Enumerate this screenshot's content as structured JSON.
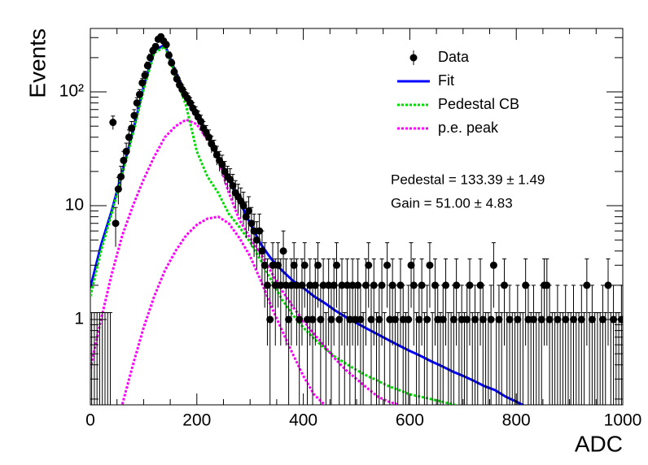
{
  "chart_data": {
    "type": "scatter",
    "xlabel": "ADC",
    "ylabel": "Events",
    "xlim": [
      0,
      1000
    ],
    "xticks": [
      0,
      200,
      400,
      600,
      800,
      1000
    ],
    "xminor_ticks": [
      50,
      100,
      150,
      250,
      300,
      350,
      450,
      500,
      550,
      650,
      700,
      750,
      850,
      900,
      950
    ],
    "ylim": [
      0.178,
      361
    ],
    "log_y": true,
    "yticks": [
      1,
      10,
      {
        "value": 100,
        "label": "10²"
      }
    ],
    "yminor_ticks": [
      0.2,
      0.3,
      0.4,
      0.5,
      0.6,
      0.7,
      0.8,
      0.9,
      2,
      3,
      4,
      5,
      6,
      7,
      8,
      9,
      20,
      30,
      40,
      50,
      60,
      70,
      80,
      90,
      200,
      300
    ],
    "legend": "upper right",
    "annotations": [
      "Pedestal = 133.39 ± 1.49",
      "Gain = 51.00 ± 4.83"
    ],
    "curve_x": [
      0,
      20,
      40,
      60,
      80,
      100,
      120,
      140,
      160,
      180,
      200,
      220,
      240,
      260,
      280,
      300,
      320,
      340,
      360,
      380,
      400,
      420,
      440,
      460,
      480,
      500,
      520,
      540,
      560,
      580,
      600,
      620,
      640,
      660,
      680,
      700,
      720,
      740,
      760,
      780,
      800,
      820,
      840,
      860,
      880,
      900,
      920,
      940,
      960,
      980,
      1000
    ],
    "series": [
      {
        "name": "Data",
        "color": "#000000",
        "style": "points",
        "x": [
          2.5,
          7.5,
          12.5,
          17.5,
          22.5,
          27.5,
          32.5,
          37.5,
          42.5,
          47.5,
          52.5,
          57.5,
          62.5,
          67.5,
          72.5,
          77.5,
          82.5,
          87.5,
          92.5,
          97.5,
          102.5,
          107.5,
          112.5,
          117.5,
          122.5,
          127.5,
          132.5,
          137.5,
          142.5,
          147.5,
          152.5,
          157.5,
          162.5,
          167.5,
          172.5,
          177.5,
          182.5,
          187.5,
          192.5,
          197.5,
          202.5,
          207.5,
          212.5,
          217.5,
          222.5,
          227.5,
          232.5,
          237.5,
          242.5,
          247.5,
          252.5,
          257.5,
          262.5,
          267.5,
          272.5,
          277.5,
          282.5,
          287.5,
          292.5,
          297.5,
          302.5,
          307.5,
          312.5,
          317.5,
          322.5,
          327.5,
          332.5,
          337.5,
          342.5,
          347.5,
          352.5,
          357.5,
          362.5,
          367.5,
          372.5,
          377.5,
          382.5,
          387.5,
          392.5,
          397.5,
          402.5,
          407.5,
          412.5,
          417.5,
          422.5,
          427.5,
          432.5,
          437.5,
          442.5,
          447.5,
          452.5,
          457.5,
          462.5,
          467.5,
          472.5,
          477.5,
          482.5,
          487.5,
          492.5,
          497.5,
          502.5,
          507.5,
          512.5,
          517.5,
          522.5,
          527.5,
          532.5,
          537.5,
          542.5,
          547.5,
          552.5,
          557.5,
          562.5,
          567.5,
          572.5,
          577.5,
          582.5,
          587.5,
          592.5,
          597.5,
          602.5,
          607.5,
          612.5,
          617.5,
          622.5,
          627.5,
          632.5,
          637.5,
          642.5,
          647.5,
          652.5,
          657.5,
          662.5,
          667.5,
          672.5,
          677.5,
          682.5,
          687.5,
          692.5,
          697.5,
          702.5,
          707.5,
          712.5,
          717.5,
          722.5,
          727.5,
          732.5,
          737.5,
          742.5,
          747.5,
          752.5,
          757.5,
          762.5,
          767.5,
          772.5,
          777.5,
          782.5,
          787.5,
          792.5,
          797.5,
          802.5,
          807.5,
          812.5,
          817.5,
          822.5,
          827.5,
          832.5,
          837.5,
          842.5,
          847.5,
          852.5,
          857.5,
          862.5,
          867.5,
          872.5,
          877.5,
          882.5,
          887.5,
          892.5,
          897.5,
          902.5,
          907.5,
          912.5,
          917.5,
          922.5,
          927.5,
          932.5,
          937.5,
          942.5,
          947.5,
          952.5,
          957.5,
          962.5,
          967.5,
          972.5,
          977.5,
          982.5,
          987.5,
          992.5,
          997.5
        ],
        "values": [
          0,
          0,
          0,
          0,
          0,
          0,
          0,
          0,
          54,
          7,
          14,
          18,
          25,
          30,
          40,
          48,
          62,
          80,
          95,
          120,
          140,
          170,
          200,
          230,
          250,
          290,
          305,
          280,
          260,
          210,
          180,
          150,
          130,
          115,
          105,
          95,
          88,
          80,
          72,
          66,
          60,
          55,
          48,
          44,
          40,
          35,
          32,
          28,
          25,
          23,
          20,
          18,
          17,
          15,
          13,
          12,
          11,
          10,
          8,
          9,
          7,
          6,
          5,
          6,
          4,
          3,
          2,
          1,
          3,
          2,
          3,
          2,
          4,
          2,
          1,
          2,
          3,
          2,
          1,
          2,
          3,
          1,
          2,
          1,
          2,
          3,
          1,
          2,
          0,
          2,
          1,
          2,
          3,
          1,
          2,
          0,
          2,
          1,
          2,
          1,
          2,
          1,
          0,
          2,
          3,
          1,
          2,
          0,
          1,
          2,
          0,
          3,
          1,
          2,
          1,
          0,
          2,
          1,
          0,
          1,
          3,
          2,
          0,
          1,
          2,
          0,
          1,
          3,
          0,
          2,
          1,
          0,
          1,
          2,
          0,
          0,
          1,
          2,
          0,
          1,
          0,
          1,
          2,
          0,
          1,
          0,
          2,
          1,
          0,
          0,
          1,
          3,
          0,
          1,
          0,
          2,
          0,
          1,
          0,
          0,
          1,
          0,
          0,
          2,
          1,
          0,
          1,
          0,
          0,
          1,
          2,
          2,
          1,
          0,
          0,
          1,
          0,
          0,
          1,
          0,
          0,
          1,
          0,
          0,
          1,
          0,
          2,
          0,
          1,
          0,
          0,
          0,
          1,
          0,
          2,
          0,
          1,
          0,
          0,
          1
        ],
        "errors": [
          1.15,
          1.15,
          1.15,
          1.15,
          1.15,
          1.15,
          1.15,
          1.15,
          7.35,
          2.65,
          3.74,
          4.24,
          5,
          5.48,
          6.32,
          6.93,
          7.87,
          8.94,
          9.75,
          10.95,
          11.83,
          13.04,
          14.14,
          15.17,
          15.81,
          17.03,
          17.46,
          16.73,
          16.12,
          14.49,
          13.42,
          12.25,
          11.4,
          10.72,
          10.25,
          9.75,
          9.38,
          8.94,
          8.49,
          8.12,
          7.75,
          7.42,
          6.93,
          6.63,
          6.32,
          5.92,
          5.66,
          5.29,
          5,
          4.8,
          4.47,
          4.24,
          4.12,
          3.87,
          3.61,
          3.46,
          3.32,
          3.16,
          2.83,
          3,
          2.65,
          2.45,
          2.24,
          2.45,
          2,
          1.73,
          1.41,
          1,
          1.73,
          1.41,
          1.73,
          1.41,
          2,
          1.41,
          1,
          1.41,
          1.73,
          1.41,
          1,
          1.41,
          1.73,
          1,
          1.41,
          1,
          1.41,
          1.73,
          1,
          1.41,
          1.15,
          1.41,
          1,
          1.41,
          1.73,
          1,
          1.41,
          1.15,
          1.41,
          1,
          1.41,
          1,
          1.41,
          1,
          1.15,
          1.41,
          1.73,
          1,
          1.41,
          1.15,
          1,
          1.41,
          1.15,
          1.73,
          1,
          1.41,
          1,
          1.15,
          1.41,
          1,
          1.15,
          1,
          1.73,
          1.41,
          1.15,
          1,
          1.41,
          1.15,
          1,
          1.73,
          1.15,
          1.41,
          1,
          1.15,
          1,
          1.41,
          1.15,
          1.15,
          1,
          1.41,
          1.15,
          1,
          1.15,
          1,
          1.41,
          1.15,
          1,
          1.15,
          1.41,
          1,
          1.15,
          1.15,
          1,
          1.73,
          1.15,
          1,
          1.15,
          1.41,
          1.15,
          1,
          1.15,
          1.15,
          1,
          1.15,
          1.15,
          1.41,
          1,
          1.15,
          1,
          1.15,
          1.15,
          1,
          1.41,
          1.41,
          1,
          1.15,
          1.15,
          1,
          1.15,
          1.15,
          1,
          1.15,
          1.15,
          1,
          1.15,
          1.15,
          1,
          1.15,
          1.41,
          1.15,
          1,
          1.15,
          1.15,
          1.15,
          1,
          1.15,
          1.41,
          1.15,
          1,
          1.15,
          1.15,
          1
        ]
      },
      {
        "name": "Fit",
        "color": "#0000ff",
        "style": "solid",
        "values": [
          1.9,
          4.5,
          9,
          20,
          45,
          110,
          230,
          260,
          150,
          95,
          65,
          42,
          27,
          17,
          11,
          7,
          4.6,
          3.4,
          2.7,
          2.2,
          1.9,
          1.6,
          1.4,
          1.2,
          1.05,
          0.93,
          0.83,
          0.74,
          0.66,
          0.59,
          0.53,
          0.48,
          0.43,
          0.39,
          0.35,
          0.32,
          0.29,
          0.26,
          0.24,
          0.21,
          0.19,
          0.17,
          null,
          null,
          null,
          null,
          null,
          null,
          null,
          null,
          null
        ]
      },
      {
        "name": "Pedestal CB",
        "color": "#00dd00",
        "style": "dotted",
        "values": [
          1.6,
          4,
          8.5,
          19,
          43,
          105,
          220,
          250,
          140,
          75,
          30,
          18,
          13,
          8.5,
          6.5,
          4.8,
          3.3,
          2.2,
          1.5,
          1.1,
          0.85,
          0.68,
          0.56,
          0.47,
          0.41,
          0.36,
          0.32,
          0.29,
          0.26,
          0.24,
          0.22,
          0.21,
          0.2,
          0.19,
          0.18,
          0.17,
          null,
          null,
          null,
          null,
          null,
          null,
          null,
          null,
          null,
          null,
          null,
          null,
          null,
          null,
          null
        ]
      },
      {
        "name": "p.e. peak",
        "color": "#ff00ff",
        "style": "dotted",
        "values": [
          0.37,
          1,
          2.5,
          5.5,
          10,
          17,
          27,
          40,
          50,
          57,
          52,
          38,
          26,
          13,
          7.5,
          5.2,
          3.8,
          2.6,
          1.8,
          1.3,
          0.98,
          0.75,
          0.58,
          0.45,
          0.36,
          0.3,
          0.25,
          0.21,
          0.19,
          0.178,
          null,
          null,
          null,
          null,
          null,
          null,
          null,
          null,
          null,
          null,
          null,
          null,
          null,
          null,
          null,
          null,
          null,
          null,
          null,
          null,
          null
        ]
      },
      {
        "color": "#ff00ff",
        "style": "dotted",
        "values": [
          null,
          null,
          null,
          0.18,
          0.4,
          0.85,
          1.6,
          2.7,
          4,
          5.5,
          6.8,
          7.7,
          8,
          7,
          5.2,
          3.6,
          2.2,
          1.3,
          0.8,
          0.5,
          0.32,
          0.22,
          0.178,
          null,
          null,
          null,
          null,
          null,
          null,
          null,
          null,
          null,
          null,
          null,
          null,
          null,
          null,
          null,
          null,
          null,
          null,
          null,
          null,
          null,
          null,
          null,
          null,
          null,
          null,
          null,
          null
        ]
      }
    ]
  }
}
